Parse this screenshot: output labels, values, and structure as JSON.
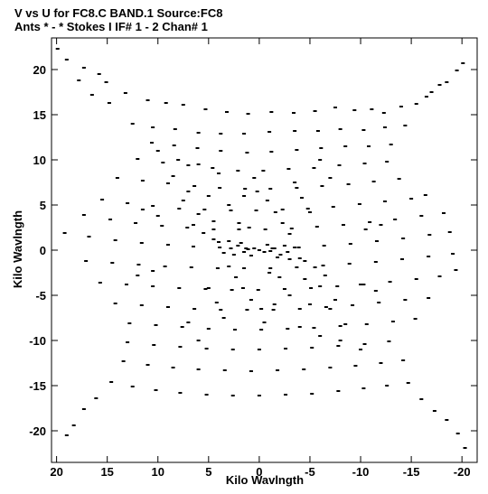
{
  "chart_data": {
    "type": "scatter",
    "title": "V vs U for FC8.C BAND.1   Source:FC8",
    "subtitle": "Ants * - *     Stokes I  IF# 1 - 2  Chan# 1",
    "xlabel": "Kilo Wavlngth",
    "ylabel": "Kilo Wavlngth",
    "xlim": [
      20.5,
      -21.5
    ],
    "ylim": [
      -23.5,
      23.5
    ],
    "x_ticks": [
      20,
      15,
      10,
      5,
      0,
      -5,
      -10,
      -15,
      -20
    ],
    "x_tick_labels": [
      "20",
      "15",
      "10",
      "5",
      "0",
      "-5",
      "-10",
      "-15",
      "-20"
    ],
    "y_ticks": [
      20,
      15,
      10,
      5,
      0,
      -5,
      -10,
      -15,
      -20
    ],
    "y_tick_labels": [
      "20",
      "15",
      "10",
      "5",
      "0",
      "-5",
      "-10",
      "-15",
      "-20"
    ],
    "grid": false,
    "marker_color": "#000000",
    "background": "#ffffff",
    "series": [
      {
        "points": [
          [
            19.9,
            22.3
          ],
          [
            19.0,
            21.1
          ],
          [
            17.3,
            20.2
          ],
          [
            15.8,
            19.5
          ],
          [
            15.1,
            18.6
          ],
          [
            13.2,
            17.4
          ],
          [
            11.0,
            16.6
          ],
          [
            9.2,
            16.3
          ],
          [
            7.5,
            16.1
          ],
          [
            5.3,
            15.6
          ],
          [
            3.2,
            15.3
          ],
          [
            1.1,
            15.1
          ],
          [
            -1.2,
            15.3
          ],
          [
            -3.4,
            15.2
          ],
          [
            -5.5,
            15.4
          ],
          [
            -7.5,
            15.8
          ],
          [
            -9.4,
            15.5
          ],
          [
            -11.1,
            15.6
          ],
          [
            -12.3,
            15.2
          ],
          [
            -14.0,
            15.9
          ],
          [
            -15.5,
            16.2
          ],
          [
            -17.0,
            17.5
          ],
          [
            -18.5,
            18.6
          ],
          [
            -19.5,
            19.9
          ],
          [
            -20.1,
            20.7
          ],
          [
            12.5,
            14.0
          ],
          [
            10.5,
            13.6
          ],
          [
            8.3,
            13.4
          ],
          [
            6.0,
            13.0
          ],
          [
            3.8,
            12.9
          ],
          [
            1.5,
            12.9
          ],
          [
            -1.0,
            13.1
          ],
          [
            -3.5,
            13.2
          ],
          [
            -5.8,
            13.2
          ],
          [
            -8.0,
            13.4
          ],
          [
            -10.3,
            13.3
          ],
          [
            -12.4,
            13.6
          ],
          [
            -14.4,
            13.8
          ],
          [
            10.6,
            11.9
          ],
          [
            8.4,
            11.6
          ],
          [
            6.1,
            11.3
          ],
          [
            3.8,
            11.0
          ],
          [
            1.2,
            10.8
          ],
          [
            -1.2,
            10.9
          ],
          [
            -3.7,
            11.1
          ],
          [
            -6.1,
            11.3
          ],
          [
            -8.5,
            11.5
          ],
          [
            -10.8,
            11.5
          ],
          [
            -13.0,
            11.7
          ],
          [
            12.0,
            10.1
          ],
          [
            9.5,
            9.7
          ],
          [
            7.0,
            9.4
          ],
          [
            4.6,
            9.1
          ],
          [
            2.1,
            8.8
          ],
          [
            -0.4,
            8.8
          ],
          [
            -2.9,
            9.0
          ],
          [
            -5.4,
            9.1
          ],
          [
            -7.9,
            9.4
          ],
          [
            -10.4,
            9.6
          ],
          [
            -12.6,
            9.8
          ],
          [
            14.0,
            8.0
          ],
          [
            11.5,
            7.7
          ],
          [
            9.0,
            7.4
          ],
          [
            6.4,
            7.1
          ],
          [
            3.9,
            6.9
          ],
          [
            1.4,
            6.8
          ],
          [
            -1.1,
            6.8
          ],
          [
            -3.7,
            6.9
          ],
          [
            -6.2,
            7.1
          ],
          [
            -8.8,
            7.3
          ],
          [
            -11.3,
            7.6
          ],
          [
            -13.8,
            7.9
          ],
          [
            15.5,
            5.6
          ],
          [
            13.0,
            5.2
          ],
          [
            10.5,
            4.9
          ],
          [
            7.9,
            4.6
          ],
          [
            5.4,
            4.5
          ],
          [
            2.8,
            4.4
          ],
          [
            0.3,
            4.4
          ],
          [
            -2.3,
            4.5
          ],
          [
            -4.8,
            4.6
          ],
          [
            -7.3,
            4.8
          ],
          [
            -9.9,
            5.1
          ],
          [
            -12.4,
            5.4
          ],
          [
            -15.0,
            5.7
          ],
          [
            -16.4,
            6.1
          ],
          [
            17.3,
            3.9
          ],
          [
            14.7,
            3.4
          ],
          [
            12.2,
            3.0
          ],
          [
            9.6,
            2.7
          ],
          [
            7.1,
            2.5
          ],
          [
            4.5,
            2.3
          ],
          [
            2.0,
            2.3
          ],
          [
            -0.6,
            2.3
          ],
          [
            -3.2,
            2.4
          ],
          [
            -5.7,
            2.6
          ],
          [
            -8.3,
            2.8
          ],
          [
            -10.9,
            3.1
          ],
          [
            -13.4,
            3.4
          ],
          [
            -16.0,
            3.8
          ],
          [
            -18.2,
            4.1
          ],
          [
            19.2,
            1.9
          ],
          [
            16.8,
            1.5
          ],
          [
            14.2,
            1.1
          ],
          [
            11.6,
            0.8
          ],
          [
            9.0,
            0.6
          ],
          [
            6.5,
            0.4
          ],
          [
            3.9,
            0.3
          ],
          [
            1.3,
            0.2
          ],
          [
            -1.3,
            0.2
          ],
          [
            -3.9,
            0.3
          ],
          [
            -6.4,
            0.5
          ],
          [
            -9.0,
            0.7
          ],
          [
            -11.6,
            1.0
          ],
          [
            -14.2,
            1.3
          ],
          [
            -16.8,
            1.7
          ],
          [
            -18.8,
            2.0
          ],
          [
            17.1,
            -1.2
          ],
          [
            14.5,
            -1.4
          ],
          [
            11.9,
            -1.6
          ],
          [
            9.3,
            -1.8
          ],
          [
            6.7,
            -1.9
          ],
          [
            4.1,
            -2.0
          ],
          [
            1.5,
            -2.0
          ],
          [
            -1.1,
            -2.0
          ],
          [
            -3.7,
            -1.9
          ],
          [
            -6.3,
            -1.7
          ],
          [
            -8.9,
            -1.5
          ],
          [
            -11.5,
            -1.3
          ],
          [
            -14.1,
            -1.0
          ],
          [
            -16.7,
            -0.7
          ],
          [
            -19.1,
            -0.4
          ],
          [
            -19.4,
            -2.2
          ],
          [
            15.7,
            -3.6
          ],
          [
            13.1,
            -3.8
          ],
          [
            10.5,
            -4.0
          ],
          [
            7.9,
            -4.2
          ],
          [
            5.3,
            -4.3
          ],
          [
            2.7,
            -4.4
          ],
          [
            0.1,
            -4.4
          ],
          [
            -2.5,
            -4.3
          ],
          [
            -5.1,
            -4.2
          ],
          [
            -7.7,
            -4.0
          ],
          [
            -10.3,
            -3.8
          ],
          [
            -12.9,
            -3.5
          ],
          [
            -15.5,
            -3.2
          ],
          [
            -17.8,
            -2.9
          ],
          [
            14.2,
            -5.9
          ],
          [
            11.6,
            -6.1
          ],
          [
            9.0,
            -6.3
          ],
          [
            6.4,
            -6.5
          ],
          [
            3.8,
            -6.6
          ],
          [
            1.2,
            -6.6
          ],
          [
            -1.4,
            -6.6
          ],
          [
            -4.0,
            -6.5
          ],
          [
            -6.6,
            -6.3
          ],
          [
            -9.2,
            -6.1
          ],
          [
            -11.8,
            -5.8
          ],
          [
            -14.4,
            -5.5
          ],
          [
            -16.7,
            -5.3
          ],
          [
            12.8,
            -8.1
          ],
          [
            10.2,
            -8.3
          ],
          [
            7.6,
            -8.5
          ],
          [
            5.0,
            -8.7
          ],
          [
            2.4,
            -8.8
          ],
          [
            -0.2,
            -8.8
          ],
          [
            -2.8,
            -8.7
          ],
          [
            -5.4,
            -8.6
          ],
          [
            -8.0,
            -8.4
          ],
          [
            -10.6,
            -8.2
          ],
          [
            -13.2,
            -7.9
          ],
          [
            -15.4,
            -7.6
          ],
          [
            13.0,
            -10.2
          ],
          [
            10.4,
            -10.5
          ],
          [
            7.8,
            -10.7
          ],
          [
            5.2,
            -10.9
          ],
          [
            2.6,
            -11.0
          ],
          [
            0.0,
            -11.0
          ],
          [
            -2.6,
            -10.9
          ],
          [
            -5.2,
            -10.8
          ],
          [
            -7.8,
            -10.6
          ],
          [
            -10.4,
            -10.4
          ],
          [
            -12.8,
            -10.1
          ],
          [
            13.4,
            -12.3
          ],
          [
            11.0,
            -12.7
          ],
          [
            8.5,
            -13.0
          ],
          [
            6.0,
            -13.2
          ],
          [
            3.4,
            -13.3
          ],
          [
            0.8,
            -13.4
          ],
          [
            -1.8,
            -13.3
          ],
          [
            -4.4,
            -13.2
          ],
          [
            -7.0,
            -13.0
          ],
          [
            -9.5,
            -12.8
          ],
          [
            -12.0,
            -12.5
          ],
          [
            -14.2,
            -12.2
          ],
          [
            14.6,
            -14.6
          ],
          [
            12.5,
            -15.1
          ],
          [
            10.2,
            -15.5
          ],
          [
            7.8,
            -15.8
          ],
          [
            5.2,
            -16.0
          ],
          [
            2.6,
            -16.1
          ],
          [
            0.0,
            -16.1
          ],
          [
            -2.6,
            -16.0
          ],
          [
            -5.2,
            -15.9
          ],
          [
            -7.8,
            -15.6
          ],
          [
            -10.3,
            -15.3
          ],
          [
            -12.6,
            -15.0
          ],
          [
            -14.7,
            -14.7
          ],
          [
            -16.0,
            -16.5
          ],
          [
            16.1,
            -16.4
          ],
          [
            17.3,
            -17.6
          ],
          [
            18.3,
            -19.4
          ],
          [
            19.0,
            -20.5
          ],
          [
            -17.3,
            -17.8
          ],
          [
            -18.5,
            -18.8
          ],
          [
            -19.6,
            -20.3
          ],
          [
            -20.3,
            -21.9
          ],
          [
            17.8,
            18.8
          ],
          [
            16.5,
            17.2
          ],
          [
            14.8,
            16.3
          ],
          [
            -16.5,
            17.0
          ],
          [
            -17.8,
            18.3
          ],
          [
            3.0,
            1.0
          ],
          [
            2.1,
            0.5
          ],
          [
            1.1,
            0.1
          ],
          [
            0.0,
            0.0
          ],
          [
            -1.1,
            -0.1
          ],
          [
            -2.1,
            -0.5
          ],
          [
            -3.0,
            -1.0
          ],
          [
            2.5,
            -0.5
          ],
          [
            1.5,
            -0.2
          ],
          [
            0.5,
            0.2
          ],
          [
            -0.5,
            -0.2
          ],
          [
            -1.5,
            0.2
          ],
          [
            -2.5,
            0.5
          ],
          [
            4.0,
            0.9
          ],
          [
            3.5,
            -0.3
          ],
          [
            2.8,
            0.2
          ],
          [
            1.8,
            0.8
          ],
          [
            0.8,
            -0.6
          ],
          [
            -0.8,
            0.6
          ],
          [
            -1.8,
            -0.8
          ],
          [
            -2.8,
            -0.2
          ],
          [
            -3.5,
            0.3
          ],
          [
            -4.0,
            -0.9
          ],
          [
            6.5,
            2.8
          ],
          [
            5.5,
            1.9
          ],
          [
            4.5,
            1.2
          ],
          [
            2.0,
            3.0
          ],
          [
            1.0,
            2.5
          ],
          [
            -1.0,
            -2.5
          ],
          [
            -2.0,
            -3.0
          ],
          [
            -4.5,
            -1.2
          ],
          [
            -5.5,
            -1.9
          ],
          [
            -6.5,
            -2.8
          ],
          [
            7.5,
            5.5
          ],
          [
            6.0,
            4.0
          ],
          [
            4.5,
            3.2
          ],
          [
            3.0,
            5.0
          ],
          [
            1.5,
            6.0
          ],
          [
            -1.5,
            -6.0
          ],
          [
            -3.0,
            -5.0
          ],
          [
            -4.5,
            -3.2
          ],
          [
            -6.0,
            -4.0
          ],
          [
            -7.5,
            -5.5
          ],
          [
            8.5,
            8.2
          ],
          [
            7.0,
            6.5
          ],
          [
            5.0,
            6.0
          ],
          [
            4.0,
            8.5
          ],
          [
            -4.0,
            -8.5
          ],
          [
            -5.0,
            -6.0
          ],
          [
            -7.0,
            -6.5
          ],
          [
            -8.5,
            -8.2
          ],
          [
            10.0,
            11.0
          ],
          [
            8.0,
            10.0
          ],
          [
            6.0,
            9.5
          ],
          [
            -6.0,
            -9.5
          ],
          [
            -8.0,
            -10.0
          ],
          [
            -10.0,
            -11.0
          ],
          [
            -0.8,
            5.5
          ],
          [
            -1.6,
            4.2
          ],
          [
            -2.3,
            3.0
          ],
          [
            -3.0,
            1.8
          ],
          [
            0.8,
            -5.5
          ],
          [
            1.6,
            -4.2
          ],
          [
            2.3,
            -3.0
          ],
          [
            3.0,
            -1.8
          ],
          [
            -3.5,
            7.5
          ],
          [
            -4.2,
            5.8
          ],
          [
            -5.0,
            4.2
          ],
          [
            3.5,
            -7.5
          ],
          [
            4.2,
            -5.8
          ],
          [
            5.0,
            -4.2
          ],
          [
            -6.0,
            10.0
          ],
          [
            -7.0,
            8.0
          ],
          [
            6.0,
            -10.0
          ],
          [
            7.0,
            -8.0
          ],
          [
            0.5,
            8.0
          ],
          [
            0.2,
            6.5
          ],
          [
            -0.2,
            -6.5
          ],
          [
            -0.5,
            -8.0
          ],
          [
            11.5,
            4.5
          ],
          [
            10.0,
            3.8
          ],
          [
            -10.0,
            -3.8
          ],
          [
            -11.5,
            -4.5
          ],
          [
            12.0,
            -2.8
          ],
          [
            10.5,
            -2.3
          ],
          [
            -10.5,
            2.3
          ],
          [
            -12.0,
            2.8
          ]
        ]
      }
    ]
  }
}
